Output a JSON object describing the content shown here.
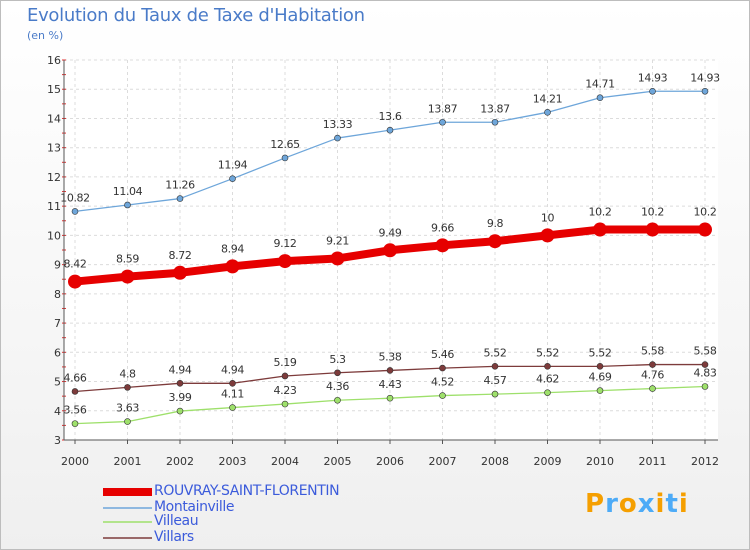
{
  "title": "Evolution du Taux de Taxe d'Habitation",
  "unit_label": "(en %)",
  "brand": {
    "letters": [
      "P",
      "r",
      "o",
      "x",
      "i",
      "t",
      "i"
    ],
    "colors": [
      "#f59f00",
      "#4dabf7",
      "#f59f00",
      "#4dabf7",
      "#f59f00",
      "#4dabf7",
      "#f59f00"
    ]
  },
  "chart_data": {
    "type": "line",
    "x": [
      "2000",
      "2001",
      "2002",
      "2003",
      "2004",
      "2005",
      "2006",
      "2007",
      "2008",
      "2009",
      "2010",
      "2011",
      "2012"
    ],
    "ylim": [
      3,
      16
    ],
    "yticks": [
      "3",
      "4",
      "5",
      "6",
      "7",
      "8",
      "9",
      "10",
      "11",
      "12",
      "13",
      "14",
      "15",
      "16"
    ],
    "grid": true,
    "legend_position": "bottom-left",
    "series": [
      {
        "name": "ROUVRAY-SAINT-FLORENTIN",
        "color": "#e60000",
        "values": [
          8.42,
          8.59,
          8.72,
          8.94,
          9.12,
          9.21,
          9.49,
          9.66,
          9.8,
          10,
          10.2,
          10.2,
          10.2
        ],
        "labels": [
          "8.42",
          "8.59",
          "8.72",
          "8.94",
          "9.12",
          "9.21",
          "9.49",
          "9.66",
          "9.8",
          "10",
          "10.2",
          "10.2",
          "10.2"
        ]
      },
      {
        "name": "Montainville",
        "color": "#6ea6da",
        "values": [
          10.82,
          11.04,
          11.26,
          11.94,
          12.65,
          13.33,
          13.6,
          13.87,
          13.87,
          14.21,
          14.71,
          14.93,
          14.93
        ],
        "labels": [
          "10.82",
          "11.04",
          "11.26",
          "11.94",
          "12.65",
          "13.33",
          "13.6",
          "13.87",
          "13.87",
          "14.21",
          "14.71",
          "14.93",
          "14.93"
        ]
      },
      {
        "name": "Villeau",
        "color": "#9ee06b",
        "values": [
          3.56,
          3.63,
          3.99,
          4.11,
          4.23,
          4.36,
          4.43,
          4.52,
          4.57,
          4.62,
          4.69,
          4.76,
          4.83
        ],
        "labels": [
          "3.56",
          "3.63",
          "3.99",
          "4.11",
          "4.23",
          "4.36",
          "4.43",
          "4.52",
          "4.57",
          "4.62",
          "4.69",
          "4.76",
          "4.83"
        ]
      },
      {
        "name": "Villars",
        "color": "#7d3b3b",
        "values": [
          4.66,
          4.8,
          4.94,
          4.94,
          5.19,
          5.3,
          5.38,
          5.46,
          5.52,
          5.52,
          5.52,
          5.58,
          5.58
        ],
        "labels": [
          "4.66",
          "4.8",
          "4.94",
          "4.94",
          "5.19",
          "5.3",
          "5.38",
          "5.46",
          "5.52",
          "5.52",
          "5.52",
          "5.58",
          "5.58"
        ]
      }
    ]
  }
}
